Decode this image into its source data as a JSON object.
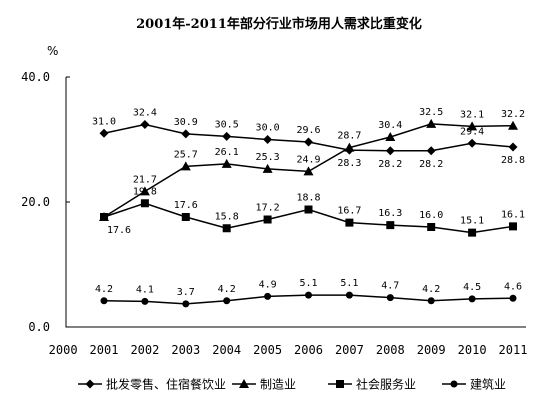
{
  "chart_data": {
    "type": "line",
    "title": "2001年-2011年部分行业市场用人需求比重变化",
    "ylabel": "%",
    "xlabel": "",
    "ylim": [
      0,
      40
    ],
    "yticks": [
      "0.0",
      "20.0",
      "40.0"
    ],
    "xlim": [
      2000,
      2011
    ],
    "xticks": [
      "2000",
      "2001",
      "2002",
      "2003",
      "2004",
      "2005",
      "2006",
      "2007",
      "2008",
      "2009",
      "2010",
      "2011"
    ],
    "x": [
      2001,
      2002,
      2003,
      2004,
      2005,
      2006,
      2007,
      2008,
      2009,
      2010,
      2011
    ],
    "legend_position": "bottom",
    "grid": false,
    "series": [
      {
        "name": "批发零售、住宿餐饮业",
        "marker": "diamond",
        "values": [
          31.0,
          32.4,
          30.9,
          30.5,
          30.0,
          29.6,
          28.3,
          28.2,
          28.2,
          29.4,
          28.8
        ],
        "labels": [
          "31.0",
          "32.4",
          "30.9",
          "30.5",
          "30.0",
          "29.6",
          "28.3",
          "28.2",
          "28.2",
          "29.4",
          "28.8"
        ],
        "label_pos": [
          "above",
          "above",
          "above",
          "above",
          "above",
          "above",
          "below",
          "below",
          "below",
          "above",
          "below"
        ]
      },
      {
        "name": "制造业",
        "marker": "triangle",
        "values": [
          17.6,
          21.7,
          25.7,
          26.1,
          25.3,
          24.9,
          28.7,
          30.4,
          32.5,
          32.1,
          32.2
        ],
        "labels": [
          "17.6",
          "21.7",
          "25.7",
          "26.1",
          "25.3",
          "24.9",
          "28.7",
          "30.4",
          "32.5",
          "32.1",
          "32.2"
        ],
        "label_pos": [
          "below",
          "above",
          "above",
          "above",
          "above",
          "above",
          "above",
          "above",
          "above",
          "above",
          "above"
        ]
      },
      {
        "name": "社会服务业",
        "marker": "square",
        "values": [
          17.6,
          19.8,
          17.6,
          15.8,
          17.2,
          18.8,
          16.7,
          16.3,
          16.0,
          15.1,
          16.1
        ],
        "labels": [
          "",
          "19.8",
          "17.6",
          "15.8",
          "17.2",
          "18.8",
          "16.7",
          "16.3",
          "16.0",
          "15.1",
          "16.1"
        ],
        "label_pos": [
          "above",
          "above",
          "above",
          "above",
          "above",
          "above",
          "above",
          "above",
          "above",
          "above",
          "above"
        ]
      },
      {
        "name": "建筑业",
        "marker": "circle",
        "values": [
          4.2,
          4.1,
          3.7,
          4.2,
          4.9,
          5.1,
          5.1,
          4.7,
          4.2,
          4.5,
          4.6
        ],
        "labels": [
          "4.2",
          "4.1",
          "3.7",
          "4.2",
          "4.9",
          "5.1",
          "5.1",
          "4.7",
          "4.2",
          "4.5",
          "4.6"
        ],
        "label_pos": [
          "above",
          "above",
          "above",
          "above",
          "above",
          "above",
          "above",
          "above",
          "above",
          "above",
          "above"
        ]
      }
    ]
  }
}
